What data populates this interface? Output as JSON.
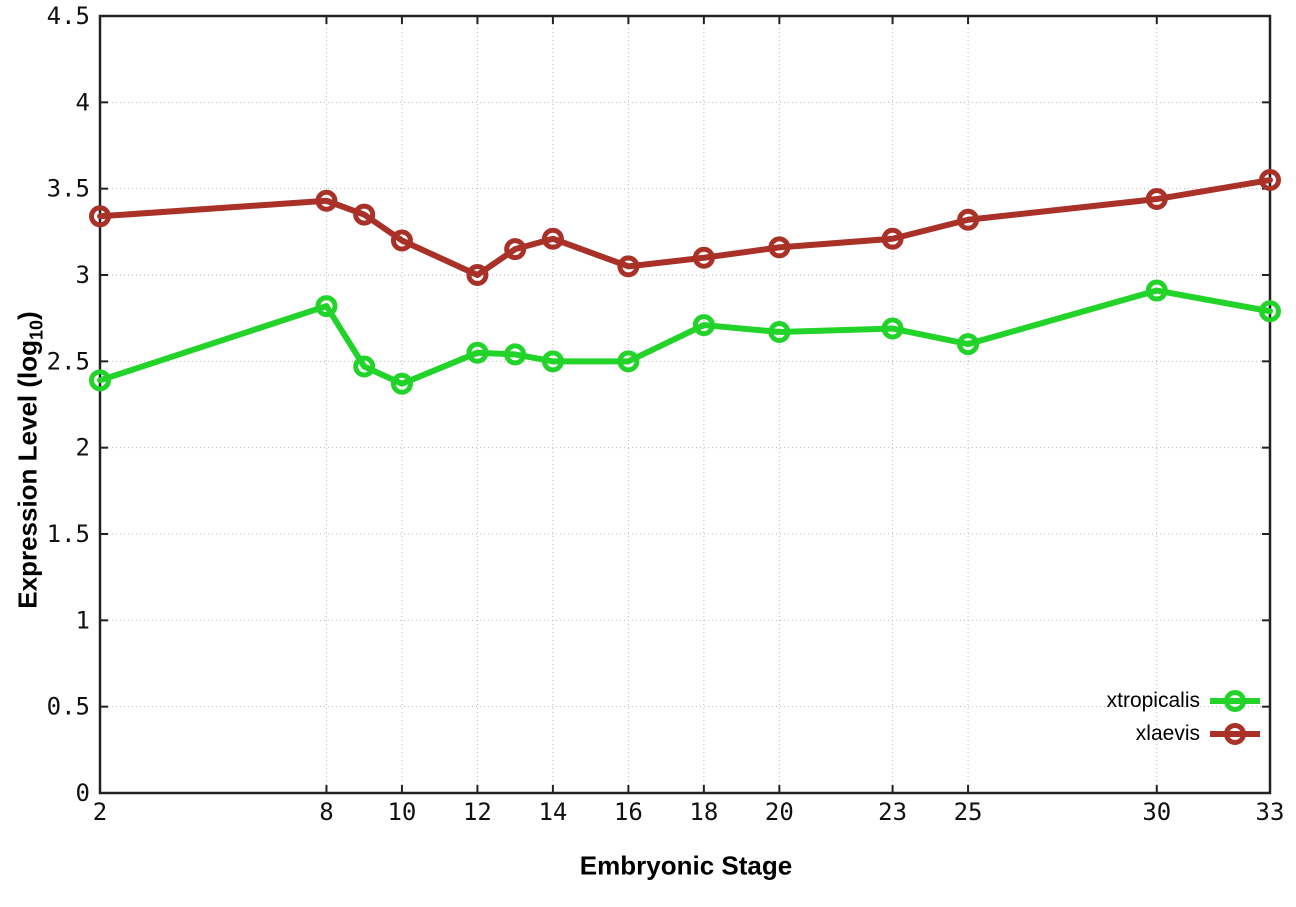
{
  "chart_data": {
    "type": "line",
    "title": "",
    "xlabel": "Embryonic Stage",
    "ylabel_prefix": "Expression Level (log",
    "ylabel_sub": "10",
    "ylabel_suffix": ")",
    "xlim": [
      2,
      33
    ],
    "ylim": [
      0,
      4.5
    ],
    "grid": true,
    "legend_position": "bottom-right-inside",
    "axis_color": "#222222",
    "grid_color": "#b8b8b8",
    "x": [
      2,
      8,
      9,
      10,
      12,
      13,
      14,
      16,
      18,
      20,
      23,
      25,
      30,
      33
    ],
    "xtick_labels": [
      2,
      8,
      10,
      12,
      14,
      16,
      18,
      20,
      23,
      25,
      30,
      33
    ],
    "ytick_values": [
      0,
      0.5,
      1,
      1.5,
      2,
      2.5,
      3,
      3.5,
      4,
      4.5
    ],
    "ytick_labels": [
      "0",
      "0.5",
      "1",
      "1.5",
      "2",
      "2.5",
      "3",
      "3.5",
      "4",
      "4.5"
    ],
    "series": [
      {
        "name": "xtropicalis",
        "color": "#22d32a",
        "values": [
          2.39,
          2.82,
          2.47,
          2.37,
          2.55,
          2.54,
          2.5,
          2.5,
          2.71,
          2.67,
          2.69,
          2.6,
          2.91,
          2.79
        ]
      },
      {
        "name": "xlaevis",
        "color": "#a93128",
        "values": [
          3.34,
          3.43,
          3.35,
          3.2,
          3.0,
          3.15,
          3.21,
          3.05,
          3.1,
          3.16,
          3.21,
          3.32,
          3.44,
          3.55
        ]
      }
    ]
  }
}
